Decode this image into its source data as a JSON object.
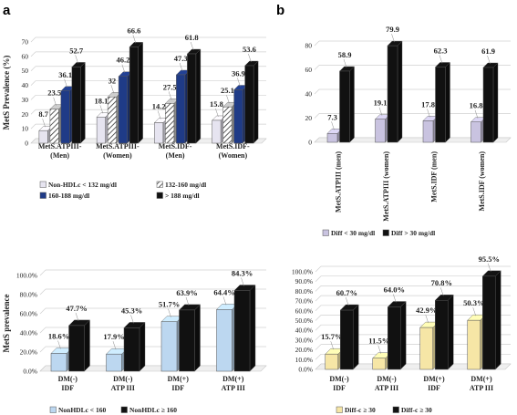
{
  "panel_labels": {
    "a": "a",
    "b": "b"
  },
  "chart_data": [
    {
      "id": "tl",
      "type": "bar",
      "ylabel": "MetS Prevalence (%)",
      "ylim": [
        0,
        70
      ],
      "yticks": [
        "0",
        "10",
        "20",
        "30",
        "40",
        "50",
        "60",
        "70"
      ],
      "grid": true,
      "categories": [
        [
          "MetS.ATPIII-",
          "(Men)"
        ],
        [
          "MetS.ATPIII-",
          "(Women)"
        ],
        [
          "MetS.IDF-",
          "(Men)"
        ],
        [
          "MetS.IDF-",
          "(Women)"
        ]
      ],
      "series": [
        {
          "name": "Non-HDLc < 132 mg/dl",
          "color": "#e6e4f0",
          "values": [
            8.7,
            18.1,
            14.2,
            15.8
          ],
          "labels": [
            "8.7",
            "18.1",
            "14.2",
            "15.8"
          ]
        },
        {
          "name": "132-160 mg/dl",
          "color": "hatch",
          "values": [
            23.5,
            32,
            27.5,
            25.1
          ],
          "labels": [
            "23.5",
            "32",
            "27.5",
            "25.1"
          ]
        },
        {
          "name": "160-188 mg/dl",
          "color": "#1f3b87",
          "values": [
            36.1,
            46.2,
            47.3,
            36.9
          ],
          "labels": [
            "36.1",
            "46.2",
            "47.3",
            "36.9"
          ]
        },
        {
          "name": "> 188 mg/dl",
          "color": "#111111",
          "values": [
            52.7,
            66.6,
            61.8,
            53.6
          ],
          "labels": [
            "52.7",
            "66.6",
            "61.8",
            "53.6"
          ]
        }
      ],
      "legend": "bottom"
    },
    {
      "id": "tr",
      "type": "bar",
      "ylim": [
        0,
        80
      ],
      "yticks": [
        "0",
        "20",
        "40",
        "60",
        "80"
      ],
      "grid": true,
      "categories": [
        [
          "MetS.ATPIII (men)"
        ],
        [
          "MetS.ATPIII (women)"
        ],
        [
          "MetS.IDF (men)"
        ],
        [
          "MetS.IDF (women)"
        ]
      ],
      "series": [
        {
          "name": "Diff < 30 mg/dl",
          "color": "#c9c3e0",
          "values": [
            7.3,
            19.1,
            17.8,
            16.8
          ],
          "labels": [
            "7.3",
            "19.1",
            "17.8",
            "16.8"
          ]
        },
        {
          "name": "Diff > 30 mg/dl",
          "color": "#111111",
          "values": [
            58.9,
            79.9,
            62.3,
            61.9
          ],
          "labels": [
            "58.9",
            "79.9",
            "62.3",
            "61.9"
          ]
        }
      ],
      "legend": "bottom"
    },
    {
      "id": "bl",
      "type": "bar",
      "ylabel": "MetS prevalence",
      "ylim": [
        0,
        100
      ],
      "yticks": [
        "0.0%",
        "20.0%",
        "40.0%",
        "60.0%",
        "80.0%",
        "100.0%"
      ],
      "grid": true,
      "categories": [
        [
          "DM(-)",
          "IDF"
        ],
        [
          "DM(-)",
          "ATP III"
        ],
        [
          "DM(+)",
          "IDF"
        ],
        [
          "DM(+)",
          "ATP III"
        ]
      ],
      "series": [
        {
          "name": "NonHDLc < 160",
          "color": "#bcd7f0",
          "values": [
            18.6,
            17.9,
            51.7,
            64.4
          ],
          "labels": [
            "18.6%",
            "17.9%",
            "51.7%",
            "64.4%"
          ]
        },
        {
          "name": "NonHDLc ≥ 160",
          "color": "#111111",
          "values": [
            47.7,
            45.3,
            63.9,
            84.3
          ],
          "labels": [
            "47.7%",
            "45.3%",
            "63.9%",
            "84.3%"
          ]
        }
      ],
      "legend": "bottom"
    },
    {
      "id": "br",
      "type": "bar",
      "ylim": [
        0,
        100
      ],
      "yticks": [
        "0.0%",
        "10.0%",
        "20.0%",
        "30.0%",
        "40.0%",
        "50.0%",
        "60.0%",
        "70.0%",
        "80.0%",
        "90.0%",
        "100.0%"
      ],
      "grid": true,
      "categories": [
        [
          "DM(-)",
          "IDF"
        ],
        [
          "DM(-)",
          "ATP III"
        ],
        [
          "DM(+)",
          "IDF"
        ],
        [
          "DM(+)",
          "ATP III"
        ]
      ],
      "series": [
        {
          "name": "Diff-c ≥ 30",
          "color": "#f6e6a6",
          "values": [
            15.7,
            11.5,
            42.9,
            50.3
          ],
          "labels": [
            "15.7%",
            "11.5%",
            "42.9%",
            "50.3%"
          ]
        },
        {
          "name": "Diff-c ≥ 30",
          "color": "#111111",
          "values": [
            60.7,
            64.0,
            70.8,
            95.5
          ],
          "labels": [
            "60.7%",
            "64.0%",
            "70.8%",
            "95.5%"
          ]
        }
      ],
      "legend": "bottom"
    }
  ]
}
